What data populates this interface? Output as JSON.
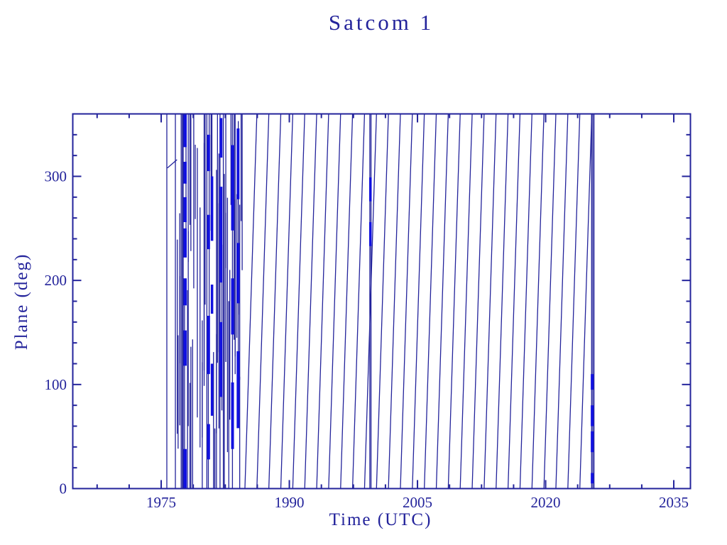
{
  "page": {
    "background": "#ffffff"
  },
  "chart_data": {
    "type": "line",
    "title": "Satcom 1",
    "xlabel": "Time (UTC)",
    "ylabel": "Plane (deg)",
    "xlim": [
      1964.65,
      2036.95
    ],
    "ylim": [
      0,
      360
    ],
    "x_major_ticks": [
      1975,
      1990,
      2005,
      2020,
      2035
    ],
    "x_tick_labels": [
      "1975",
      "1990",
      "2005",
      "2020",
      "2035"
    ],
    "x_minor_step": 3.75,
    "y_major_ticks": [
      0,
      100,
      200,
      300
    ],
    "y_tick_labels": [
      "0",
      "100",
      "200",
      "300"
    ],
    "y_minor_step": 20,
    "grid": false,
    "legend": false,
    "colors": {
      "line": "#23239b",
      "bright": "#1111e0",
      "frame": "#23239b",
      "text": "#23239b",
      "background": "#ffffff"
    },
    "description": "Orbital plane angle (deg, 0-360 wrap) of Satcom 1 vs time; rapid chaotic wrapping 1976-1985, regular ~1.4 yr wrap period 1985-2025, fast-wrap anomaly near 1999.5, data ends ~2025.7",
    "first_vertical_year": 1975.66,
    "intro_dash": {
      "t0": 1975.72,
      "p0": 308,
      "t1": 1976.85,
      "p1": 316
    },
    "wrap_period_years": 1.4,
    "regular_wrap_bottoms": [
      1984.8,
      1986.2,
      1987.6,
      1989.0,
      1990.4,
      1991.8,
      1993.2,
      1994.6,
      1996.0,
      1997.4,
      1998.8,
      2000.2,
      2001.6,
      2003.0,
      2004.4,
      2005.8,
      2007.2,
      2008.6,
      2010.0,
      2011.4,
      2012.8,
      2014.2,
      2015.6,
      2017.0,
      2018.4,
      2019.8,
      2021.2,
      2022.6,
      2024.0
    ],
    "chaos_spans": [
      {
        "t0": 1976.7,
        "t1": 1978.9,
        "step": 0.15,
        "full_prob": 0.3
      },
      {
        "t0": 1978.95,
        "t1": 1980.0,
        "step": 0.28,
        "full_prob": 0.12
      },
      {
        "t0": 1980.0,
        "t1": 1984.6,
        "step": 0.16,
        "full_prob": 0.3
      }
    ],
    "prng_seed": 7,
    "thick_bands": [
      {
        "t": 1977.8,
        "w": 4.5,
        "segs": [
          [
            0,
            38
          ],
          [
            118,
            152
          ],
          [
            176,
            202
          ],
          [
            222,
            250
          ],
          [
            256,
            280
          ],
          [
            293,
            314
          ],
          [
            328,
            360
          ]
        ]
      },
      {
        "t": 1980.55,
        "w": 4.0,
        "segs": [
          [
            28,
            62
          ],
          [
            110,
            166
          ],
          [
            230,
            263
          ],
          [
            305,
            340
          ]
        ]
      },
      {
        "t": 1980.95,
        "w": 3.5,
        "segs": [
          [
            70,
            120
          ],
          [
            168,
            196
          ],
          [
            238,
            300
          ]
        ]
      },
      {
        "t": 1982.0,
        "w": 4.0,
        "segs": [
          [
            88,
            160
          ],
          [
            198,
            290
          ],
          [
            318,
            356
          ]
        ]
      },
      {
        "t": 1983.35,
        "w": 4.0,
        "segs": [
          [
            38,
            102
          ],
          [
            148,
            202
          ],
          [
            248,
            330
          ]
        ]
      },
      {
        "t": 1984.0,
        "w": 4.0,
        "segs": [
          [
            58,
            132
          ],
          [
            178,
            236
          ],
          [
            278,
            346
          ]
        ]
      }
    ],
    "anomaly": {
      "t_lines": [
        1999.42,
        1999.56
      ],
      "bright_t": 1999.49,
      "bright_segments": [
        [
          233,
          256
        ],
        [
          276,
          299
        ]
      ]
    },
    "final_cluster": {
      "t_lines": [
        2025.38,
        2025.52,
        2025.66
      ],
      "bright_t": 2025.45,
      "bright_segments": [
        [
          5,
          15
        ],
        [
          35,
          55
        ],
        [
          60,
          80
        ],
        [
          95,
          110
        ]
      ]
    }
  }
}
